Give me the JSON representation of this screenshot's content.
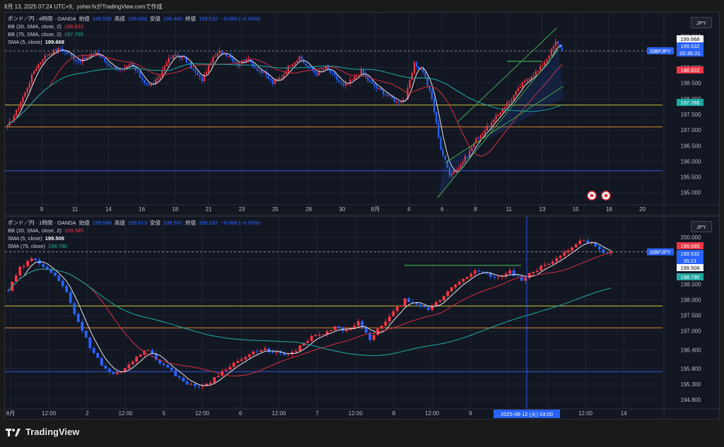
{
  "header": {
    "datetime": "8月 13, 2025 07:24 UTC+9",
    "author": "yohei-fxがTradingView.comで作成"
  },
  "footer": {
    "brand": "TradingView"
  },
  "colors": {
    "up": "#f23645",
    "down": "#2962ff",
    "sma5": "#e0e3eb",
    "bb_mid": "#cc2f3c",
    "sma75": "#1fa8a0",
    "yellow": "#c9c13a",
    "orange": "#d9822b",
    "blue": "#3056d3",
    "channel": "#3fa34d"
  },
  "panel1": {
    "title": "ポンド／円 · 4時間 · OANDA",
    "ohlc": {
      "o_label": "始値",
      "o": "199.559",
      "h_label": "高値",
      "h": "199.626",
      "l_label": "安値",
      "l": "199.480",
      "c_label": "終値",
      "c": "199.532",
      "chg": "−0.080 (−0.04%)"
    },
    "ind1": {
      "label": "BB (20, SMA, close, 2)",
      "value": "198.822"
    },
    "ind2": {
      "label": "BB (75, SMA, close, 2)",
      "value": "197.765"
    },
    "ind3": {
      "label": "SMA (5, close)",
      "value": "199.668"
    },
    "currency": "JPY",
    "symbol_tag": "GBPJPY",
    "price_labels": [
      {
        "text": "199.668",
        "kind": "sma5"
      },
      {
        "text": "199.532",
        "kind": "last"
      },
      {
        "text": "02:35:21",
        "kind": "timer"
      },
      {
        "text": "198.822",
        "kind": "bb"
      },
      {
        "text": "197.765",
        "kind": "sma75"
      }
    ],
    "y_ticks": [
      "200.000",
      "199.500",
      "199.000",
      "198.500",
      "198.000",
      "197.500",
      "197.000",
      "196.500",
      "196.000",
      "195.500",
      "195.000"
    ],
    "x_ticks": [
      "9",
      "11",
      "14",
      "16",
      "18",
      "21",
      "23",
      "25",
      "28",
      "30",
      "8月",
      "4",
      "6",
      "8",
      "11",
      "13",
      "15",
      "18",
      "20"
    ]
  },
  "panel2": {
    "title": "ポンド／円 · 1時間 · OANDA",
    "ohlc": {
      "o_label": "始値",
      "o": "199.598",
      "h_label": "高値",
      "h": "199.613",
      "l_label": "安値",
      "l": "199.507",
      "c_label": "終値",
      "c": "199.532",
      "chg": "−0.068 (−0.03%)"
    },
    "ind1": {
      "label": "BB (20, SMA, close, 2)",
      "value": "199.585"
    },
    "ind2": {
      "label": "SMA (5, close)",
      "value": "199.506"
    },
    "ind3": {
      "label": "SMA (75, close)",
      "value": "198.790"
    },
    "currency": "JPY",
    "symbol_tag": "GBPJPY",
    "price_labels": [
      {
        "text": "199.585",
        "kind": "bb"
      },
      {
        "text": "199.532",
        "kind": "last"
      },
      {
        "text": "35:21",
        "kind": "timer"
      },
      {
        "text": "199.506",
        "kind": "sma5"
      },
      {
        "text": "198.790",
        "kind": "sma75"
      }
    ],
    "y_ticks": [
      "200.000",
      "199.300",
      "198.500",
      "198.000",
      "197.500",
      "197.000",
      "196.400",
      "195.800",
      "195.300",
      "194.800"
    ],
    "x_ticks": [
      "8月",
      "12:00",
      "2",
      "12:00",
      "5",
      "12:00",
      "6",
      "12:00",
      "7",
      "12:00",
      "8",
      "12:00",
      "9",
      "12:00",
      "13",
      "12:00",
      "14"
    ],
    "crosshair_label": "2025-08-12 (火)   03:00"
  },
  "chart_data": [
    {
      "type": "candlestick",
      "title": "ポンド／円 · 4時間 · OANDA",
      "ylim": [
        194.7,
        200.3
      ],
      "horizontal_lines": [
        {
          "price": 197.8,
          "color": "yellow"
        },
        {
          "price": 197.1,
          "color": "orange"
        },
        {
          "price": 195.7,
          "color": "blue"
        }
      ],
      "approx_close_path": [
        197.1,
        197.6,
        198.2,
        198.9,
        199.3,
        199.5,
        199.6,
        199.4,
        199.2,
        199.3,
        199.5,
        199.2,
        199.0,
        198.9,
        199.1,
        198.7,
        198.4,
        198.6,
        199.2,
        199.4,
        199.3,
        198.9,
        198.6,
        199.2,
        199.5,
        199.4,
        199.1,
        199.3,
        199.0,
        198.8,
        198.5,
        198.7,
        199.1,
        199.3,
        199.0,
        198.8,
        199.0,
        198.7,
        198.4,
        198.6,
        198.9,
        198.5,
        198.3,
        198.1,
        197.9,
        198.0,
        199.1,
        198.9,
        198.0,
        196.4,
        195.6,
        195.8,
        196.2,
        196.7,
        197.0,
        197.3,
        197.7,
        198.0,
        198.4,
        198.7,
        198.9,
        199.3,
        199.8,
        199.5
      ]
    },
    {
      "type": "candlestick",
      "title": "ポンド／円 · 1時間 · OANDA",
      "ylim": [
        194.6,
        200.2
      ],
      "horizontal_lines": [
        {
          "price": 197.8,
          "color": "yellow"
        },
        {
          "price": 197.1,
          "color": "orange"
        },
        {
          "price": 195.7,
          "color": "blue"
        }
      ],
      "approx_close_path": [
        198.3,
        199.0,
        199.3,
        199.1,
        198.8,
        198.2,
        197.3,
        196.5,
        195.9,
        195.6,
        195.8,
        196.2,
        196.4,
        196.0,
        195.7,
        195.4,
        195.2,
        195.3,
        195.6,
        195.9,
        196.1,
        196.3,
        196.4,
        196.3,
        196.2,
        196.5,
        196.8,
        196.9,
        197.1,
        197.0,
        197.3,
        196.7,
        197.2,
        197.6,
        198.0,
        197.8,
        197.7,
        198.0,
        198.4,
        198.7,
        198.9,
        198.8,
        198.7,
        198.9,
        198.6,
        198.9,
        199.1,
        199.3,
        199.6,
        199.9,
        199.8,
        199.5,
        199.6
      ]
    }
  ]
}
